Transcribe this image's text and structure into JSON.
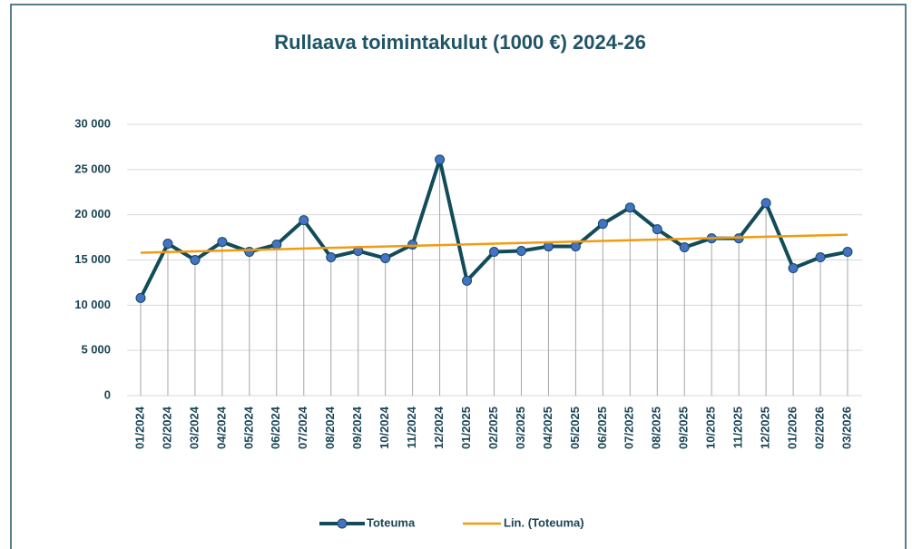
{
  "chart_data": {
    "type": "line",
    "title": "Rullaava toimintakulut (1000 €) 2024-26",
    "categories": [
      "01/2024",
      "02/2024",
      "03/2024",
      "04/2024",
      "05/2024",
      "06/2024",
      "07/2024",
      "08/2024",
      "09/2024",
      "10/2024",
      "11/2024",
      "12/2024",
      "01/2025",
      "02/2025",
      "03/2025",
      "04/2025",
      "05/2025",
      "06/2025",
      "07/2025",
      "08/2025",
      "09/2025",
      "10/2025",
      "11/2025",
      "12/2025",
      "01/2026",
      "02/2026",
      "03/2026"
    ],
    "series": [
      {
        "name": "Toteuma",
        "color": "#124b5a",
        "marker_color": "#4472c4",
        "values": [
          10800,
          16800,
          15000,
          17000,
          15900,
          16700,
          19400,
          15300,
          16000,
          15200,
          16700,
          26100,
          12700,
          15900,
          16000,
          16500,
          16500,
          19000,
          20800,
          18400,
          16400,
          17400,
          17400,
          21300,
          14100,
          15300,
          15900
        ]
      },
      {
        "name": "Lin. (Toteuma)",
        "color": "#f29b11",
        "values": [
          15800,
          15877,
          15954,
          16031,
          16108,
          16185,
          16262,
          16338,
          16415,
          16492,
          16569,
          16646,
          16723,
          16800,
          16877,
          16954,
          17031,
          17108,
          17185,
          17262,
          17338,
          17415,
          17492,
          17569,
          17646,
          17723,
          17800
        ]
      }
    ],
    "ylim": [
      0,
      30000
    ],
    "yticks": [
      0,
      {
        "value": 5000,
        "label": "5 000"
      },
      {
        "value": 10000,
        "label": "10 000"
      },
      {
        "value": 15000,
        "label": "15 000"
      },
      {
        "value": 20000,
        "label": "20 000"
      },
      {
        "value": 25000,
        "label": "25 000"
      },
      {
        "value": 30000,
        "label": "30 000"
      }
    ],
    "grid": true,
    "drop_lines": true,
    "legend": "bottom"
  }
}
